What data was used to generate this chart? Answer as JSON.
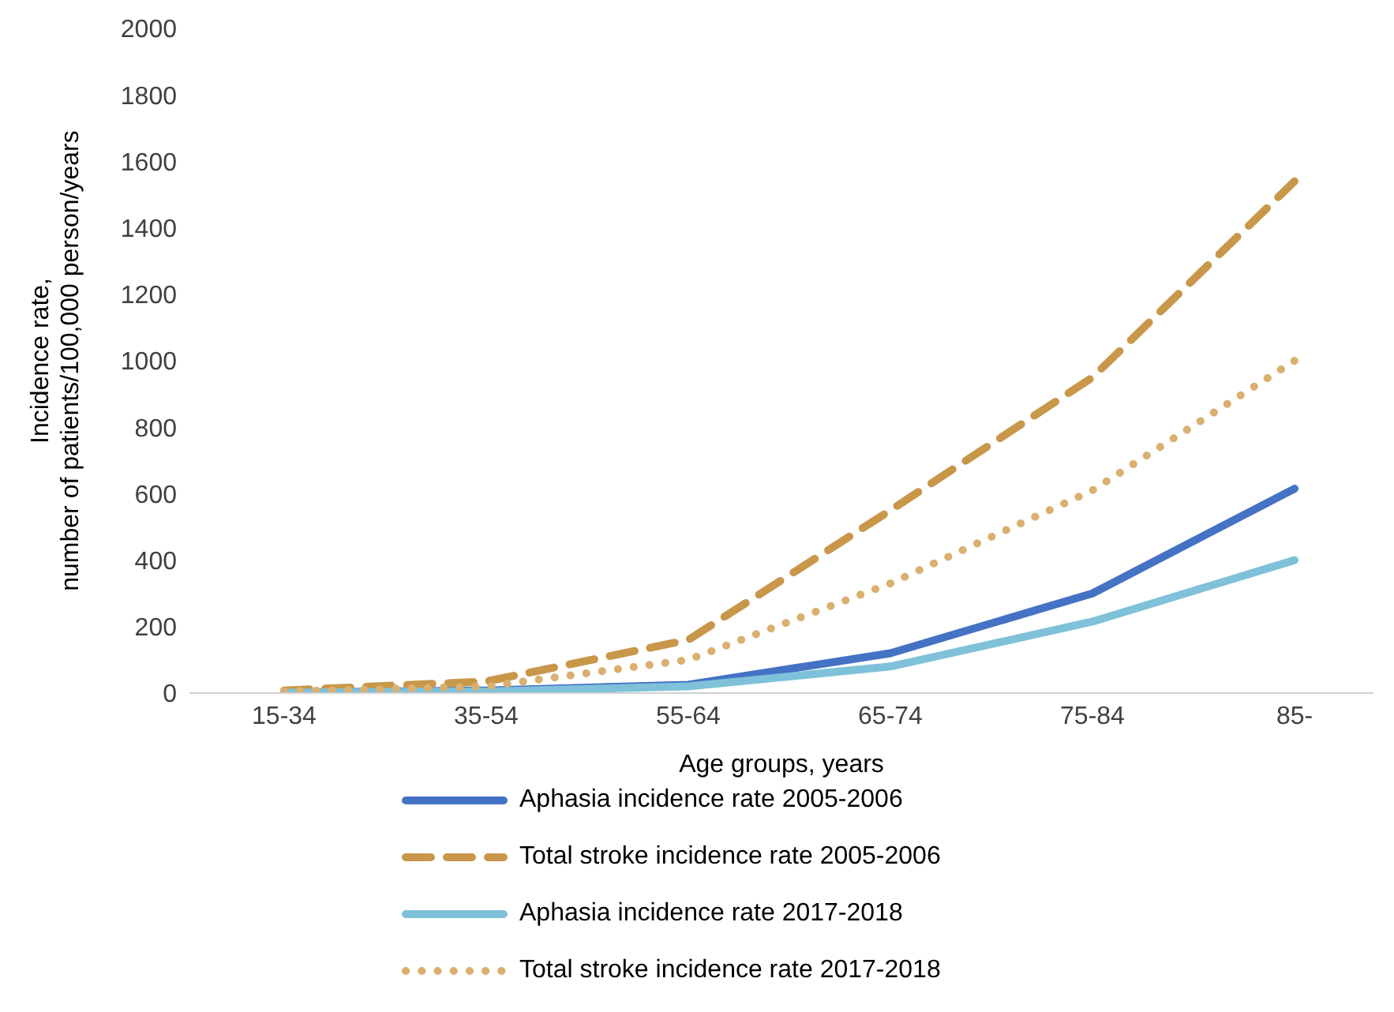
{
  "chart_data": {
    "type": "line",
    "xlabel": "Age groups, years",
    "ylabel": "Incidence rate,\nnumber of patients/100,000 person/years",
    "categories": [
      "15-34",
      "35-54",
      "55-64",
      "65-74",
      "75-84",
      "85-"
    ],
    "ylim": [
      0,
      2000
    ],
    "yticks": [
      0,
      200,
      400,
      600,
      800,
      1000,
      1200,
      1400,
      1600,
      1800,
      2000
    ],
    "grid": false,
    "legend": "bottom",
    "marker": "none",
    "series": [
      {
        "name": "Aphasia incidence rate 2005-2006",
        "color": "#4472c4",
        "line_style": "solid",
        "values": [
          2,
          8,
          25,
          120,
          300,
          615
        ]
      },
      {
        "name": "Total stroke incidence rate 2005-2006",
        "color": "#c9974a",
        "line_style": "dashed",
        "values": [
          8,
          35,
          160,
          550,
          950,
          1540
        ]
      },
      {
        "name": "Aphasia incidence rate 2017-2018",
        "color": "#7fc1d9",
        "line_style": "solid",
        "values": [
          1,
          5,
          20,
          80,
          215,
          400
        ]
      },
      {
        "name": "Total stroke incidence rate 2017-2018",
        "color": "#d9b070",
        "line_style": "dotted",
        "values": [
          5,
          20,
          100,
          330,
          610,
          1000
        ]
      }
    ]
  }
}
